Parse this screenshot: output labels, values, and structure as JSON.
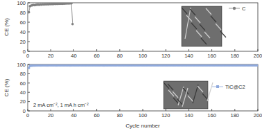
{
  "chart_data": [
    {
      "type": "line",
      "y_label": "CE (%)",
      "xlim": [
        0,
        200
      ],
      "xticks": [
        0,
        20,
        40,
        60,
        80,
        100,
        120,
        140,
        160,
        180,
        200
      ],
      "ylim": [
        0,
        100
      ],
      "yticks": [
        0,
        20,
        40,
        60,
        80,
        100
      ],
      "legend": "upper right",
      "series": [
        {
          "name": "C",
          "color": "#808080",
          "marker": "circle",
          "x": [
            1,
            2,
            3,
            4,
            5,
            6,
            7,
            8,
            9,
            10,
            11,
            12,
            13,
            14,
            15,
            16,
            17,
            18,
            19,
            20,
            21,
            22,
            23,
            24,
            25,
            26,
            27,
            28,
            29,
            30,
            31,
            32,
            33,
            34,
            35,
            36,
            37,
            38,
            39
          ],
          "values": [
            80.5,
            93.0,
            94.2,
            94.8,
            95.3,
            95.0,
            95.6,
            95.9,
            96.2,
            95.8,
            96.4,
            96.0,
            96.7,
            96.5,
            97.0,
            96.8,
            97.2,
            96.9,
            97.4,
            97.1,
            97.5,
            97.3,
            97.8,
            97.6,
            97.9,
            97.7,
            98.1,
            97.9,
            98.3,
            98.0,
            98.4,
            98.2,
            98.6,
            98.5,
            98.8,
            98.7,
            99.0,
            98.9,
            56.0
          ]
        }
      ]
    },
    {
      "type": "line",
      "y_label": "CE (%)",
      "x_label": "Cycle number",
      "annotation": "2 mA cm⁻², 1 mA h cm⁻²",
      "xlim": [
        0,
        200
      ],
      "xticks": [
        0,
        20,
        40,
        60,
        80,
        100,
        120,
        140,
        160,
        180,
        200
      ],
      "ylim": [
        0,
        100
      ],
      "yticks": [
        0,
        20,
        40,
        60,
        80,
        100
      ],
      "legend": "right",
      "series": [
        {
          "name": "TiC@C2",
          "color": "#8fa9dc",
          "marker": "square",
          "x": [
            1,
            2,
            3,
            4,
            5,
            6,
            7,
            8,
            9,
            10,
            11,
            12,
            13,
            14,
            15,
            16,
            17,
            18,
            19,
            20,
            21,
            22,
            23,
            24,
            25,
            26,
            27,
            28,
            29,
            30,
            31,
            32,
            33,
            34,
            35,
            36,
            37,
            38,
            39,
            40,
            41,
            42,
            43,
            44,
            45,
            46,
            47,
            48,
            49,
            50,
            51,
            52,
            53,
            54,
            55,
            56,
            57,
            58,
            59,
            60,
            61,
            62,
            63,
            64,
            65,
            66,
            67,
            68,
            69,
            70,
            71,
            72,
            73,
            74,
            75,
            76,
            77,
            78,
            79,
            80,
            81,
            82,
            83,
            84,
            85,
            86,
            87,
            88,
            89,
            90,
            91,
            92,
            93,
            94,
            95,
            96,
            97,
            98,
            99,
            100,
            101,
            102,
            103,
            104,
            105,
            106,
            107,
            108,
            109,
            110,
            111,
            112,
            113,
            114,
            115,
            116,
            117,
            118,
            119,
            120,
            121,
            122,
            123,
            124,
            125,
            126,
            127,
            128,
            129,
            130,
            131,
            132,
            133,
            134,
            135,
            136,
            137,
            138,
            139,
            140,
            141,
            142,
            143,
            144,
            145,
            146,
            147,
            148,
            149,
            150,
            151,
            152,
            153,
            154,
            155,
            156,
            157,
            158,
            159,
            160,
            161,
            162,
            163,
            164,
            165,
            166,
            167,
            168,
            169,
            170,
            171,
            172,
            173,
            174,
            175,
            176,
            177,
            178,
            179,
            180,
            181,
            182,
            183,
            184,
            185,
            186,
            187,
            188,
            189,
            190,
            191,
            192,
            193,
            194,
            195,
            196,
            197,
            198,
            199,
            200
          ],
          "values": [
            92.5,
            97.0,
            97.4,
            97.6,
            97.8,
            97.7,
            97.9,
            97.8,
            98.0,
            97.9,
            97.8,
            98.0,
            97.9,
            98.1,
            97.9,
            98.0,
            97.8,
            98.0,
            98.1,
            97.9,
            98.0,
            97.9,
            98.1,
            98.0,
            97.8,
            98.0,
            98.1,
            97.9,
            98.0,
            98.2,
            97.9,
            98.0,
            98.1,
            97.9,
            98.0,
            98.1,
            97.8,
            98.0,
            98.1,
            98.0,
            97.9,
            98.1,
            98.0,
            97.9,
            98.2,
            98.0,
            97.9,
            98.1,
            98.0,
            97.9,
            98.0,
            98.1,
            97.9,
            98.0,
            98.2,
            97.9,
            98.0,
            98.1,
            97.9,
            98.0,
            98.1,
            97.9,
            98.0,
            98.1,
            98.0,
            97.8,
            98.0,
            98.1,
            97.9,
            98.0,
            98.1,
            98.0,
            97.9,
            98.1,
            98.0,
            97.9,
            98.0,
            98.2,
            98.0,
            97.9,
            98.0,
            98.1,
            97.9,
            98.0,
            98.1,
            98.0,
            97.9,
            98.1,
            98.0,
            97.9,
            98.1,
            98.0,
            97.9,
            98.0,
            98.1,
            97.9,
            98.0,
            98.1,
            98.0,
            97.9,
            98.0,
            98.1,
            97.9,
            98.0,
            98.2,
            98.0,
            97.9,
            98.1,
            98.0,
            97.9,
            98.0,
            98.1,
            97.9,
            98.0,
            98.1,
            98.0,
            97.9,
            98.1,
            98.0,
            98.0,
            97.9,
            98.1,
            98.0,
            97.9,
            98.0,
            98.1,
            97.9,
            98.0,
            98.2,
            98.0,
            97.9,
            98.0,
            98.1,
            97.9,
            98.0,
            98.1,
            98.0,
            97.9,
            98.1,
            98.0,
            97.9,
            98.0,
            98.1,
            97.9,
            98.0,
            98.1,
            98.0,
            97.9,
            98.1,
            98.0,
            98.0,
            97.9,
            98.1,
            98.0,
            97.9,
            98.0,
            98.1,
            97.9,
            98.0,
            98.1,
            98.0,
            97.9,
            98.1,
            98.0,
            97.9,
            98.0,
            98.2,
            97.9,
            98.0,
            98.1,
            97.9,
            98.0,
            98.1,
            98.0,
            97.9,
            98.1,
            98.0,
            97.9,
            98.0,
            98.1,
            97.9,
            98.0,
            98.1,
            98.0,
            97.9,
            98.1,
            98.0,
            97.9,
            98.0,
            98.1,
            98.0,
            97.9,
            98.1,
            98.0,
            97.9,
            98.0,
            98.1,
            97.9,
            98.0,
            98.1
          ]
        }
      ]
    }
  ]
}
